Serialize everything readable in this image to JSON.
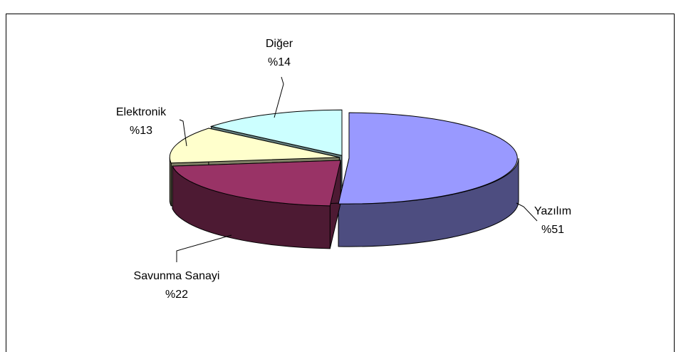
{
  "chart_data": {
    "type": "pie",
    "categories": [
      "Yazılım",
      "Savunma Sanayi",
      "Elektronik",
      "Diğer"
    ],
    "values": [
      51,
      22,
      13,
      14
    ],
    "value_labels": [
      "%51",
      "%22",
      "%13",
      "%14"
    ],
    "colors": [
      "#9999ff",
      "#993366",
      "#ffffcc",
      "#ccffff"
    ]
  }
}
